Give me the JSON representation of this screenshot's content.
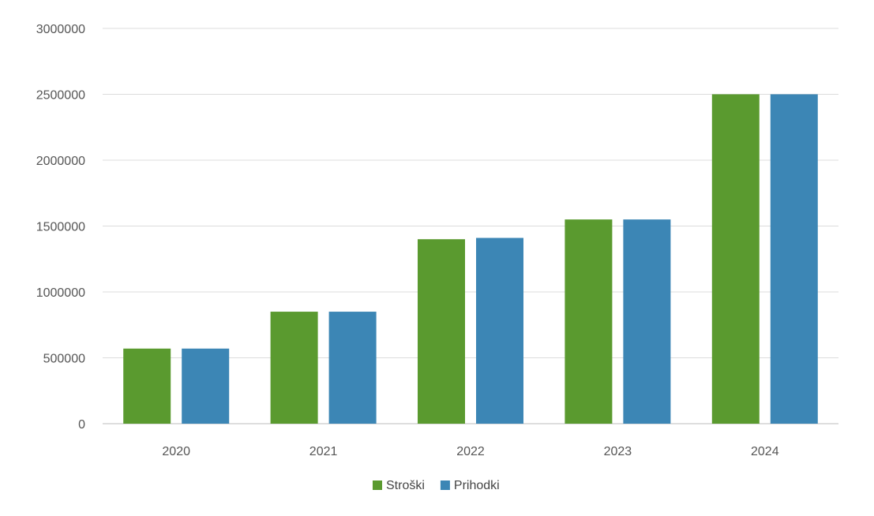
{
  "chart_data": {
    "type": "bar",
    "categories": [
      "2020",
      "2021",
      "2022",
      "2023",
      "2024"
    ],
    "series": [
      {
        "name": "Stroški",
        "color": "#5a9a2f",
        "values": [
          570000,
          850000,
          1400000,
          1550000,
          2500000
        ]
      },
      {
        "name": "Prihodki",
        "color": "#3c86b5",
        "values": [
          570000,
          850000,
          1410000,
          1550000,
          2500000
        ]
      }
    ],
    "title": "",
    "xlabel": "",
    "ylabel": "",
    "ylim": [
      0,
      3000000
    ],
    "yticks": [
      "0",
      "500000",
      "1000000",
      "1500000",
      "2000000",
      "2500000",
      "3000000"
    ],
    "grid": true,
    "legend_position": "bottom"
  }
}
